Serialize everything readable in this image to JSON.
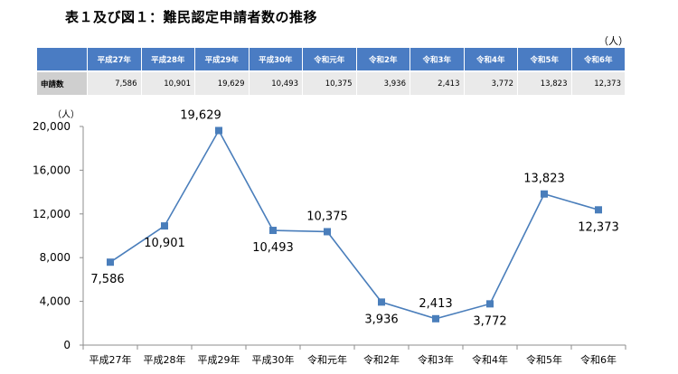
{
  "title": "表１及び図１：難民認定申請者数の推移",
  "table": {
    "unit": "（人）",
    "row_label": "申請数",
    "headers": [
      "平成27年",
      "平成28年",
      "平成29年",
      "平成30年",
      "令和元年",
      "令和2年",
      "令和3年",
      "令和4年",
      "令和5年",
      "令和6年"
    ],
    "values": [
      "7,586",
      "10,901",
      "19,629",
      "10,493",
      "10,375",
      "3,936",
      "2,413",
      "3,772",
      "13,823",
      "12,373"
    ]
  },
  "chart_data": {
    "type": "line",
    "title": "",
    "xlabel": "",
    "ylabel": "",
    "unit_label": "（人）",
    "categories": [
      "平成27年",
      "平成28年",
      "平成29年",
      "平成30年",
      "令和元年",
      "令和2年",
      "令和3年",
      "令和4年",
      "令和5年",
      "令和6年"
    ],
    "series": [
      {
        "values": [
          7586,
          10901,
          19629,
          10493,
          10375,
          3936,
          2413,
          3772,
          13823,
          12373
        ],
        "labels": [
          "7,586",
          "10,901",
          "19,629",
          "10,493",
          "10,375",
          "3,936",
          "2,413",
          "3,772",
          "13,823",
          "12,373"
        ]
      }
    ],
    "ylim": [
      0,
      20000
    ],
    "yticks": [
      0,
      4000,
      8000,
      12000,
      16000,
      20000
    ],
    "ytick_labels": [
      "0",
      "4,000",
      "8,000",
      "12,000",
      "16,000",
      "20,000"
    ],
    "grid": false,
    "line_color": "#4a7ebb",
    "marker_color": "#4a7ebb"
  }
}
